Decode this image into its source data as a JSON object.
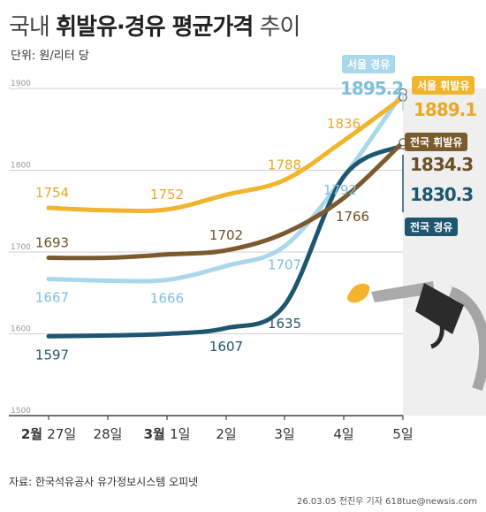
{
  "title": {
    "part1": "국내 ",
    "part2": "휘발유·경유 평균가격",
    "part3": " 추이"
  },
  "unit": "단위: 원/리터 당",
  "source": "자료: 한국석유공사 유가정보시스템 오피넷",
  "credit": "26.03.05 전진우 기자 618tue@newsis.com",
  "colors": {
    "seoul_gasoline": "#f2b42c",
    "national_gasoline": "#7a5a2e",
    "seoul_diesel": "#a9d8ea",
    "national_diesel": "#1e5670",
    "plot_bg": "#efefef"
  },
  "chart_data": {
    "type": "line",
    "x": [
      "2월 27일",
      "28일",
      "3월 1일",
      "2일",
      "3일",
      "4일",
      "5일"
    ],
    "x_month_labels": [
      "2월",
      "",
      "3월",
      "",
      "",
      "",
      ""
    ],
    "x_day_labels": [
      "27일",
      "28일",
      "1일",
      "2일",
      "3일",
      "4일",
      "5일"
    ],
    "ylim": [
      1500,
      1900
    ],
    "yticks": [
      1500,
      1600,
      1700,
      1800,
      1900
    ],
    "grid": true,
    "series": [
      {
        "key": "seoul_gasoline",
        "name": "서울 휘발유",
        "values": [
          1754,
          1751,
          1752,
          1770,
          1788,
          1836,
          1889.1
        ],
        "labels": [
          "1754",
          "",
          "1752",
          "",
          "1788",
          "1836",
          ""
        ],
        "end_label": "1889.1"
      },
      {
        "key": "national_gasoline",
        "name": "전국 휘발유",
        "values": [
          1693,
          1693,
          1697,
          1702,
          1723,
          1766,
          1834.3
        ],
        "labels": [
          "1693",
          "",
          "",
          "1702",
          "",
          "1766",
          ""
        ],
        "end_label": "1834.3"
      },
      {
        "key": "seoul_diesel",
        "name": "서울 경유",
        "values": [
          1667,
          1665,
          1666,
          1683,
          1707,
          1792,
          1895.2
        ],
        "labels": [
          "1667",
          "",
          "1666",
          "",
          "1707",
          "1792",
          ""
        ],
        "end_label": "1895.2"
      },
      {
        "key": "national_diesel",
        "name": "전국 경유",
        "values": [
          1597,
          1598,
          1600,
          1607,
          1635,
          1792,
          1830.3
        ],
        "labels": [
          "1597",
          "",
          "",
          "1607",
          "1635",
          "",
          ""
        ],
        "end_label": "1830.3"
      }
    ]
  }
}
